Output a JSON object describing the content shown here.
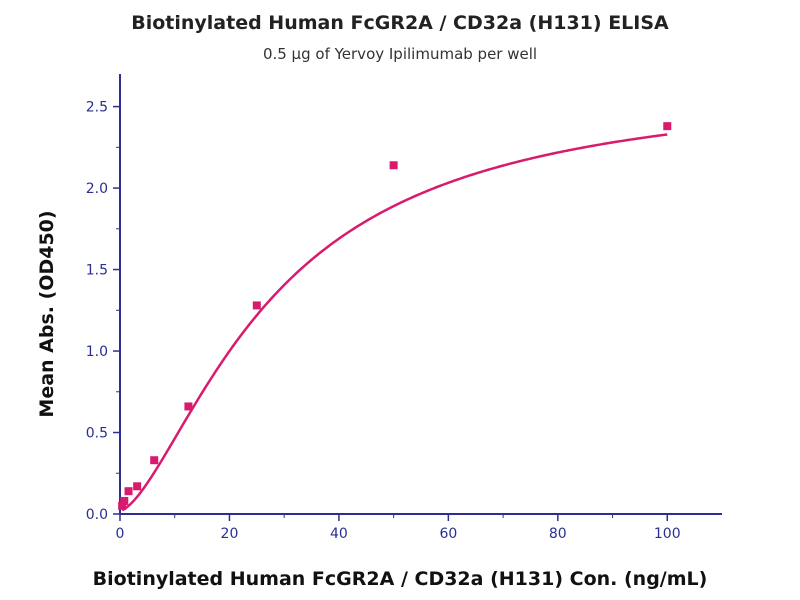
{
  "chart_data": {
    "type": "scatter",
    "title": "Biotinylated Human FcGR2A / CD32a (H131) ELISA",
    "subtitle": "0.5 μg of Yervoy Ipilimumab per well",
    "xlabel": "Biotinylated Human FcGR2A / CD32a (H131) Con. (ng/mL)",
    "ylabel": "Mean Abs. (OD450)",
    "xlim": [
      0,
      110
    ],
    "ylim": [
      0,
      2.7
    ],
    "x_ticks": [
      0,
      20,
      40,
      60,
      80,
      100
    ],
    "y_ticks": [
      0.0,
      0.5,
      1.0,
      1.5,
      2.0,
      2.5
    ],
    "grid": false,
    "series": [
      {
        "points": [
          {
            "x": 0.39,
            "y": 0.05
          },
          {
            "x": 0.78,
            "y": 0.08
          },
          {
            "x": 1.56,
            "y": 0.14
          },
          {
            "x": 3.13,
            "y": 0.17
          },
          {
            "x": 6.25,
            "y": 0.33
          },
          {
            "x": 12.5,
            "y": 0.66
          },
          {
            "x": 25,
            "y": 1.28
          },
          {
            "x": 50,
            "y": 2.14
          },
          {
            "x": 100,
            "y": 2.38
          }
        ],
        "fit": "four-parameter logistic"
      }
    ],
    "colors": {
      "marker": "#d81b6c",
      "curve": "#d81b6c",
      "axis": "#2b2f8f",
      "tick_label": "#2b2f8f"
    }
  }
}
